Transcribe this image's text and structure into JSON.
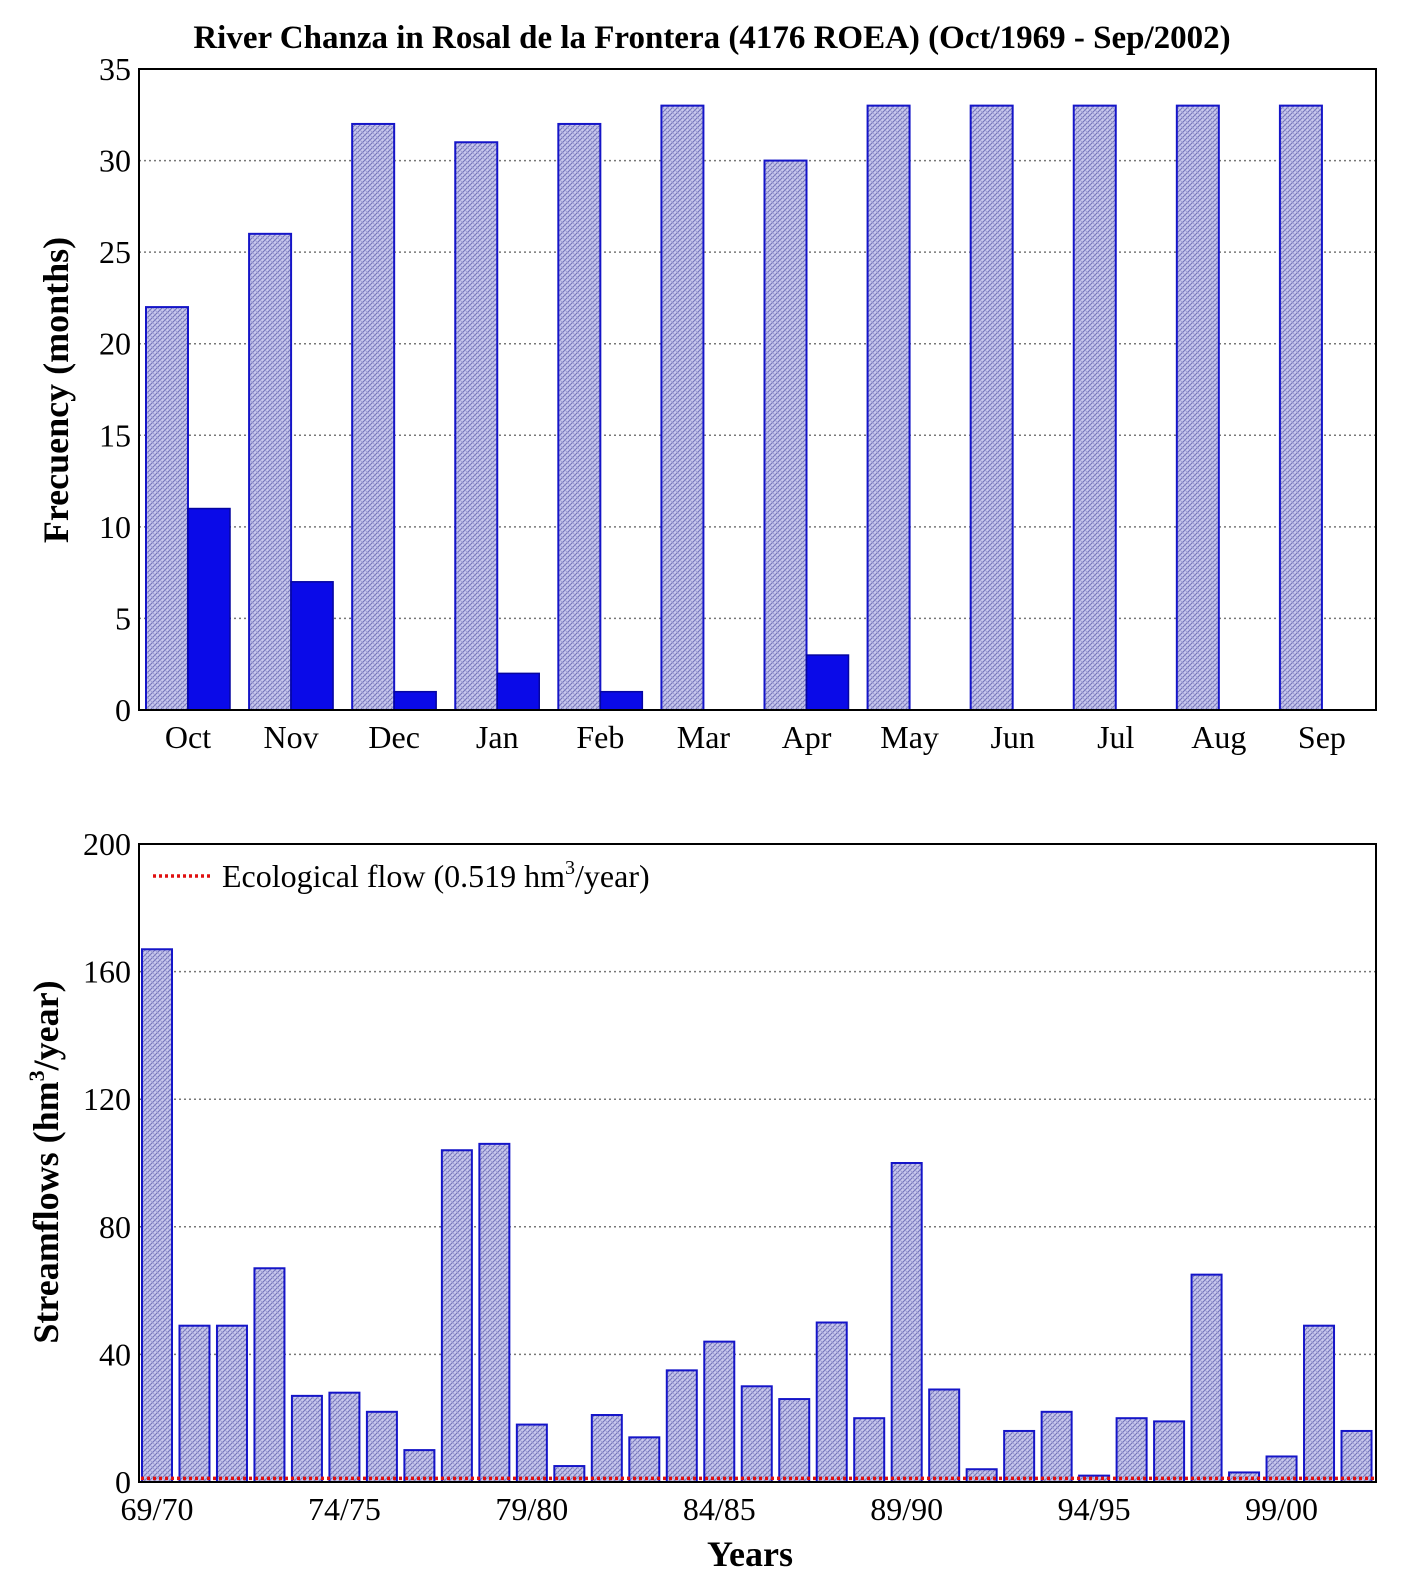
{
  "chart_data": [
    {
      "type": "bar",
      "title": "River Chanza in Rosal de la Frontera (4176 ROEA) (Oct/1969 - Sep/2002)",
      "xlabel": "",
      "ylabel": "Frecuency (months)",
      "ylim": [
        0,
        35
      ],
      "yticks": [
        0,
        5,
        10,
        15,
        20,
        25,
        30,
        35
      ],
      "grid": true,
      "categories": [
        "Oct",
        "Nov",
        "Dec",
        "Jan",
        "Feb",
        "Mar",
        "Apr",
        "May",
        "Jun",
        "Jul",
        "Aug",
        "Sep"
      ],
      "series": [
        {
          "name": "hatched",
          "values": [
            22,
            26,
            32,
            31,
            32,
            33,
            30,
            33,
            33,
            33,
            33,
            33
          ]
        },
        {
          "name": "solid",
          "values": [
            11,
            7,
            1,
            2,
            1,
            0,
            3,
            0,
            0,
            0,
            0,
            0
          ]
        }
      ]
    },
    {
      "type": "bar",
      "title": "",
      "xlabel": "Years",
      "ylabel_main": "Streamflows (hm",
      "ylabel_sup": "3",
      "ylabel_tail": "/year)",
      "ylim": [
        0,
        200
      ],
      "yticks": [
        0,
        40,
        80,
        120,
        160,
        200
      ],
      "grid": true,
      "xticks": [
        "69/70",
        "74/75",
        "79/80",
        "84/85",
        "89/90",
        "94/95",
        "99/00"
      ],
      "categories": [
        "69/70",
        "70/71",
        "71/72",
        "72/73",
        "73/74",
        "74/75",
        "75/76",
        "76/77",
        "77/78",
        "78/79",
        "79/80",
        "80/81",
        "81/82",
        "82/83",
        "83/84",
        "84/85",
        "85/86",
        "86/87",
        "87/88",
        "88/89",
        "89/90",
        "90/91",
        "91/92",
        "92/93",
        "93/94",
        "94/95",
        "95/96",
        "96/97",
        "97/98",
        "98/99",
        "99/00",
        "00/01",
        "01/02"
      ],
      "values": [
        167,
        49,
        49,
        67,
        27,
        28,
        22,
        10,
        104,
        106,
        18,
        5,
        21,
        14,
        35,
        44,
        30,
        26,
        50,
        20,
        100,
        29,
        4,
        16,
        22,
        2,
        20,
        19,
        65,
        3,
        8,
        49,
        16
      ],
      "ecological_flow": 0.519,
      "legend": {
        "position": "top-left",
        "label_main": "Ecological flow (0.519 hm",
        "label_sup": "3",
        "label_tail": "/year)"
      }
    }
  ]
}
